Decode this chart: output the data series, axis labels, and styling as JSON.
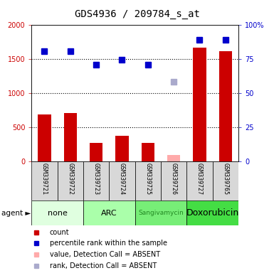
{
  "title": "GDS4936 / 209784_s_at",
  "samples": [
    "GSM339721",
    "GSM339722",
    "GSM339723",
    "GSM339724",
    "GSM339725",
    "GSM339726",
    "GSM339727",
    "GSM339765"
  ],
  "agents": [
    {
      "label": "none",
      "samples": [
        0,
        1
      ],
      "color": "#e0ffe0"
    },
    {
      "label": "ARC",
      "samples": [
        2,
        3
      ],
      "color": "#aaffaa"
    },
    {
      "label": "Sangivamycin",
      "samples": [
        4,
        5
      ],
      "color": "#77ee77"
    },
    {
      "label": "Doxorubicin",
      "samples": [
        6,
        7
      ],
      "color": "#44dd44"
    }
  ],
  "bar_values": [
    680,
    700,
    265,
    370,
    265,
    null,
    1660,
    1610
  ],
  "bar_absent_values": [
    null,
    null,
    null,
    null,
    null,
    90,
    null,
    null
  ],
  "rank_values": [
    1610,
    1610,
    1410,
    1480,
    1410,
    null,
    1780,
    1780
  ],
  "rank_absent_values": [
    null,
    null,
    null,
    null,
    null,
    1160,
    null,
    null
  ],
  "bar_color": "#cc0000",
  "bar_absent_color": "#ffaaaa",
  "rank_color": "#0000cc",
  "rank_absent_color": "#aaaacc",
  "left_ylim": [
    0,
    2000
  ],
  "right_ylim": [
    0,
    100
  ],
  "left_yticks": [
    0,
    500,
    1000,
    1500,
    2000
  ],
  "right_yticks": [
    0,
    25,
    50,
    75,
    100
  ],
  "right_yticklabels": [
    "0",
    "25",
    "50",
    "75",
    "100%"
  ],
  "dotted_lines": [
    500,
    1000,
    1500
  ],
  "bar_width": 0.5,
  "marker_size": 6,
  "tick_fontsize": 7,
  "title_fontsize": 10,
  "sample_fontsize": 6,
  "agent_fontsize": 8,
  "legend_fontsize": 7,
  "agent_label_colors": [
    "black",
    "black",
    "#228822",
    "black"
  ],
  "agent_label_fontsizes": [
    8,
    8,
    6.5,
    9
  ]
}
